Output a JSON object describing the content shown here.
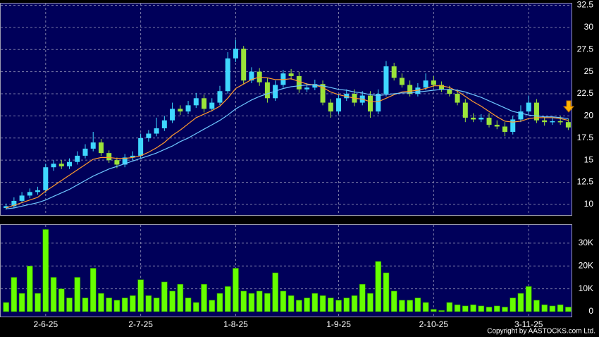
{
  "chart_data": {
    "type": "candlestick",
    "categories": [
      null,
      null,
      null,
      null,
      null,
      "2-6-25",
      null,
      null,
      null,
      null,
      null,
      null,
      null,
      null,
      null,
      null,
      null,
      "2-7-25",
      null,
      null,
      null,
      null,
      null,
      null,
      null,
      null,
      null,
      null,
      null,
      "1-8-25",
      null,
      null,
      null,
      null,
      null,
      null,
      null,
      null,
      null,
      null,
      null,
      null,
      "1-9-25",
      null,
      null,
      null,
      null,
      null,
      null,
      null,
      null,
      null,
      null,
      null,
      "2-10-25",
      null,
      null,
      null,
      null,
      null,
      null,
      null,
      null,
      null,
      null,
      null,
      "3-11-25",
      null,
      null,
      null,
      null,
      null
    ],
    "open": [
      9.6,
      9.8,
      10.4,
      11,
      11.4,
      11.6,
      14.2,
      14.6,
      14.3,
      14.8,
      15.5,
      16.3,
      17,
      15.8,
      15,
      14.5,
      15.3,
      15.5,
      17.5,
      18,
      18.6,
      19.5,
      20.8,
      20.5,
      21.2,
      22,
      20.8,
      21.5,
      22.8,
      26.5,
      27.6,
      24,
      25,
      23.8,
      22,
      23.5,
      24.8,
      24.5,
      23,
      23.2,
      23.6,
      21.5,
      20.5,
      22,
      22.5,
      21.5,
      22.3,
      20.5,
      22.5,
      25.6,
      24.3,
      23.5,
      22.5,
      23.2,
      24,
      23.5,
      23,
      22.5,
      21.5,
      19.8,
      19.6,
      19.8,
      19,
      18.8,
      18.2,
      19.6,
      20.5,
      21.5,
      19.5,
      19.3,
      19.4,
      19.3
    ],
    "high": [
      10.1,
      10.8,
      11.4,
      11.8,
      12,
      14.6,
      15,
      15,
      15.2,
      16,
      16.8,
      18.2,
      17.4,
      16.1,
      15.3,
      15.7,
      16,
      18,
      18.4,
      19.8,
      20,
      21.5,
      21.2,
      21.7,
      22.6,
      22.4,
      22,
      23.4,
      27.2,
      28.6,
      27.9,
      25.5,
      25.4,
      24.3,
      24,
      25.2,
      25.3,
      25,
      23.7,
      24.1,
      24,
      21.9,
      22.5,
      23,
      23,
      22.8,
      22.8,
      23,
      26.2,
      26,
      24.8,
      24,
      23.7,
      24.8,
      24.5,
      23.9,
      23.4,
      23,
      21.9,
      20.3,
      20.2,
      20.3,
      19.5,
      19.3,
      20,
      21.2,
      22.3,
      21.9,
      19.9,
      19.8,
      20,
      19.7
    ],
    "low": [
      9.4,
      9.6,
      10.2,
      10.7,
      11.1,
      11.3,
      13.8,
      14,
      14,
      14.5,
      15.2,
      16,
      15.5,
      14.7,
      14.1,
      14.2,
      15,
      15.2,
      17.1,
      17.7,
      18.3,
      19.2,
      20.1,
      20.2,
      20.9,
      20.4,
      20.5,
      21.2,
      22.5,
      26.1,
      23.6,
      23.7,
      23.4,
      21.5,
      21.7,
      23.2,
      24.1,
      22.6,
      22.7,
      22.9,
      21.2,
      19.8,
      20.2,
      21.7,
      21.1,
      21.2,
      19.8,
      20.2,
      22.2,
      24,
      23.2,
      22.2,
      22.2,
      22.9,
      23.2,
      22.7,
      22.2,
      21.2,
      19.3,
      19.3,
      19.3,
      18.7,
      18.5,
      17.7,
      17.9,
      19.3,
      20.2,
      19.2,
      18.9,
      19,
      19,
      18.4
    ],
    "close": [
      9.8,
      10.4,
      11,
      11.4,
      11.6,
      14.2,
      14.6,
      14.3,
      14.8,
      15.5,
      16.3,
      17,
      15.8,
      15,
      14.5,
      15.3,
      15.5,
      17.5,
      18,
      18.6,
      19.5,
      20.8,
      20.5,
      21.2,
      22,
      20.8,
      21.5,
      22.8,
      26.5,
      27.6,
      24,
      25,
      23.8,
      22,
      23.5,
      24.8,
      24.5,
      23,
      23.2,
      23.6,
      21.5,
      20.5,
      22,
      22.5,
      21.5,
      22.3,
      20.5,
      22.5,
      25.6,
      24.3,
      23.5,
      22.5,
      23.2,
      24,
      23.5,
      23,
      22.5,
      21.5,
      19.8,
      19.6,
      19.8,
      19,
      18.8,
      18.2,
      19.6,
      20.5,
      21.5,
      19.5,
      19.3,
      19.4,
      19.3,
      18.7
    ],
    "up_color": "#3fd7ff",
    "down_color": "#9be33a",
    "series": [
      {
        "color": "#ff9a2e",
        "values": [
          9.6,
          9.9,
          10.2,
          10.5,
          10.8,
          11.5,
          12.1,
          12.7,
          13.3,
          13.9,
          14.5,
          15.1,
          15.3,
          15.3,
          15.2,
          15.2,
          15.3,
          15.5,
          15.9,
          16.4,
          17,
          17.8,
          18.4,
          19.1,
          19.8,
          20.2,
          20.6,
          21.1,
          22,
          23.1,
          23.6,
          24.1,
          24.4,
          24.3,
          24.1,
          24.1,
          24.2,
          23.9,
          23.6,
          23.5,
          23.2,
          22.7,
          22.4,
          22.2,
          22,
          21.9,
          21.6,
          21.6,
          22,
          22.4,
          22.7,
          22.8,
          22.9,
          23.1,
          23.4,
          23.4,
          23.2,
          22.8,
          22.2,
          21.6,
          21.1,
          20.5,
          19.9,
          19.4,
          19.3,
          19.4,
          19.7,
          19.8,
          19.8,
          19.8,
          19.7,
          19.5
        ]
      },
      {
        "color": "#6ec6ff",
        "values": [
          9.5,
          9.6,
          9.8,
          10,
          10.2,
          10.5,
          10.9,
          11.3,
          11.7,
          12.2,
          12.7,
          13.2,
          13.6,
          14,
          14.3,
          14.6,
          14.9,
          15.2,
          15.5,
          15.8,
          16.2,
          16.6,
          17.1,
          17.5,
          18,
          18.5,
          19,
          19.5,
          20.1,
          20.8,
          21.3,
          21.8,
          22.2,
          22.5,
          22.8,
          23.1,
          23.3,
          23.4,
          23.5,
          23.5,
          23.4,
          23.2,
          23,
          22.9,
          22.7,
          22.6,
          22.4,
          22.3,
          22.4,
          22.5,
          22.6,
          22.6,
          22.7,
          22.8,
          22.9,
          23,
          23,
          22.9,
          22.7,
          22.4,
          22.1,
          21.7,
          21.3,
          20.9,
          20.5,
          20.3,
          20.1,
          20,
          19.9,
          19.9,
          19.8,
          19.7
        ]
      }
    ],
    "ylim": [
      8.8,
      32.7
    ],
    "yticks": [
      10,
      12.5,
      15,
      17.5,
      20,
      22.5,
      25,
      27.5,
      30,
      32.5
    ],
    "grid": true,
    "volume": {
      "type": "bar",
      "color": "#66ff00",
      "values": [
        4000,
        15000,
        8000,
        20000,
        8000,
        36000,
        15000,
        10000,
        6000,
        15000,
        6000,
        19000,
        8000,
        6000,
        5000,
        6000,
        7000,
        14000,
        7000,
        6000,
        13000,
        9000,
        12000,
        6000,
        4000,
        12000,
        5000,
        8000,
        11000,
        19000,
        9000,
        8000,
        9000,
        8000,
        17000,
        9000,
        7000,
        5000,
        6000,
        8000,
        7000,
        6000,
        5000,
        6000,
        7000,
        12000,
        8000,
        22000,
        17000,
        9000,
        5000,
        5000,
        6000,
        4000,
        1000,
        500,
        4000,
        3000,
        2500,
        3000,
        2500,
        2000,
        2500,
        2000,
        6000,
        8000,
        11000,
        5000,
        3000,
        2500,
        3000,
        2000
      ],
      "ylim": [
        0,
        38000
      ],
      "yticks": [
        0,
        {
          "value": 10000,
          "label": "10K"
        },
        {
          "value": 20000,
          "label": "20K"
        },
        {
          "value": 30000,
          "label": "30K"
        }
      ]
    },
    "footer": "Copyright by AASTOCKS.com Ltd."
  }
}
